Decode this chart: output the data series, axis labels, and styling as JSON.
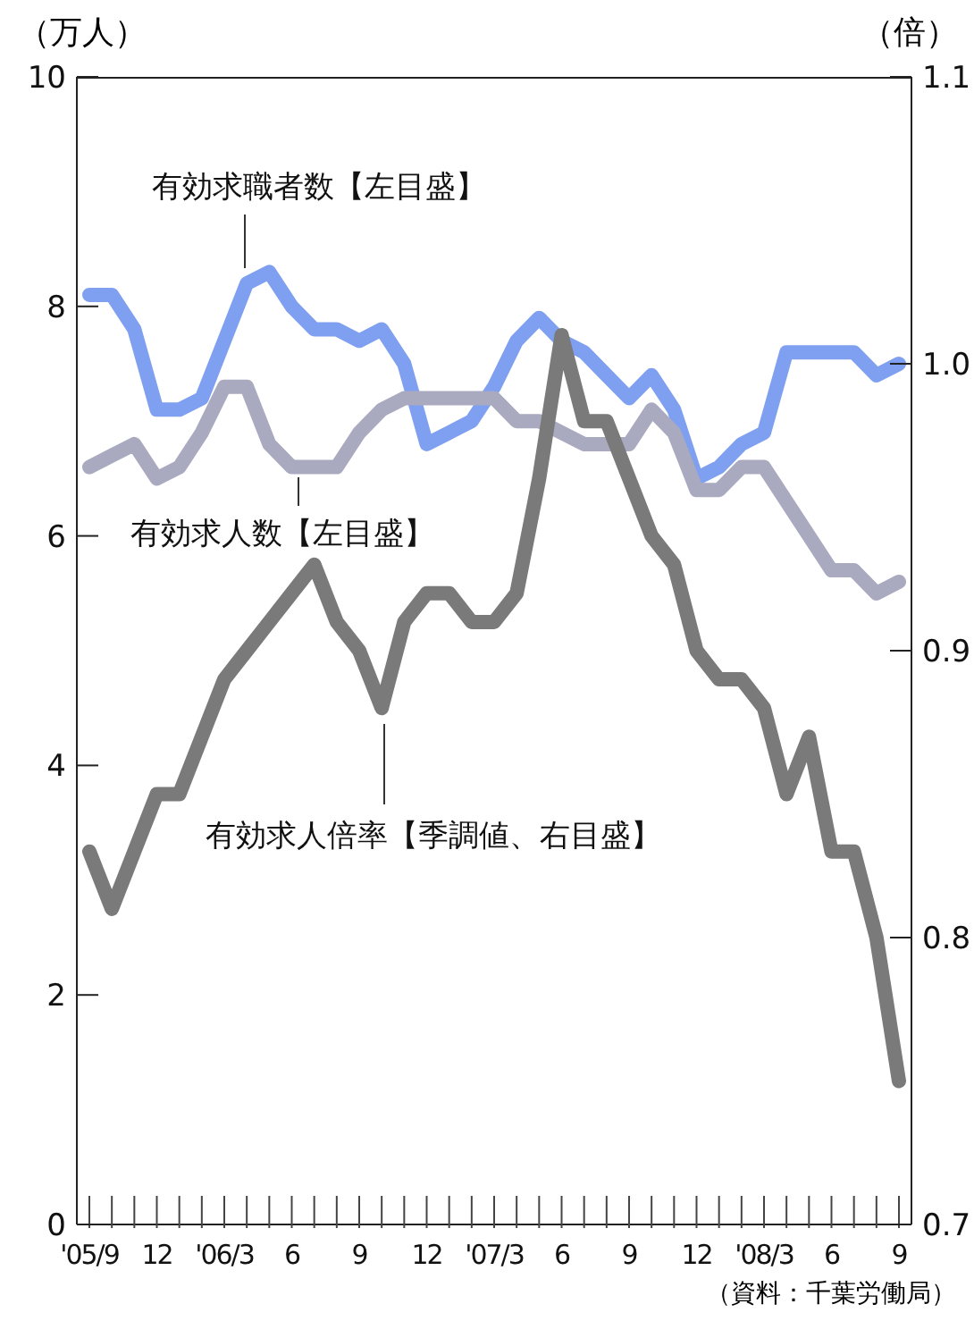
{
  "chart_data": {
    "type": "line",
    "ylabel": "（万人）",
    "y2label": "（倍）",
    "categories": [
      "'05/9",
      null,
      null,
      "12",
      null,
      null,
      "'06/3",
      null,
      null,
      "6",
      null,
      null,
      "9",
      null,
      null,
      "12",
      null,
      null,
      "'07/3",
      null,
      null,
      "6",
      null,
      null,
      "9",
      null,
      null,
      "12",
      null,
      null,
      "'08/3",
      null,
      null,
      "6",
      null,
      null,
      "9"
    ],
    "ylim": [
      0,
      10
    ],
    "yticks": [
      0,
      2,
      4,
      6,
      8,
      10
    ],
    "y2lim": [
      0.7,
      1.1
    ],
    "y2ticks": [
      0.7,
      0.8,
      0.9,
      {
        "value": 1,
        "label": "1.0"
      },
      1.1
    ],
    "series": [
      {
        "name": "有効求職者数【左目盛】",
        "color": "#7f9ff0",
        "values": [
          8.1,
          8.1,
          7.8,
          7.1,
          7.1,
          7.2,
          7.7,
          8.2,
          8.3,
          8.0,
          7.8,
          7.8,
          7.7,
          7.8,
          7.5,
          6.8,
          6.9,
          7.0,
          7.3,
          7.7,
          7.9,
          7.7,
          7.6,
          7.4,
          7.2,
          7.4,
          7.1,
          6.5,
          6.6,
          6.8,
          6.9,
          7.6,
          7.6,
          7.6,
          7.6,
          7.4,
          7.5
        ]
      },
      {
        "name": "有効求人数【左目盛】",
        "color": "#a9a9c0",
        "values": [
          6.6,
          6.7,
          6.8,
          6.5,
          6.6,
          6.9,
          7.3,
          7.3,
          6.8,
          6.6,
          6.6,
          6.6,
          6.9,
          7.1,
          7.2,
          7.2,
          7.2,
          7.2,
          7.2,
          7.0,
          7.0,
          6.9,
          6.8,
          6.8,
          6.8,
          7.1,
          6.9,
          6.4,
          6.4,
          6.6,
          6.6,
          6.3,
          6.0,
          5.7,
          5.7,
          5.5,
          5.6
        ]
      },
      {
        "name": "有効求人倍率【季調値、右目盛】",
        "color": "#7a7a7a",
        "axis": "y2",
        "values": [
          0.83,
          0.81,
          0.83,
          0.85,
          0.85,
          0.87,
          0.89,
          0.9,
          0.91,
          0.92,
          0.93,
          0.91,
          0.9,
          0.88,
          0.91,
          0.92,
          0.92,
          0.91,
          0.91,
          0.92,
          0.96,
          1.01,
          0.98,
          0.98,
          0.96,
          0.94,
          0.93,
          0.9,
          0.89,
          0.89,
          0.88,
          0.85,
          0.87,
          0.83,
          0.83,
          0.8,
          0.75
        ]
      }
    ],
    "line_style": "solid",
    "annotations": [
      "（資料：千葉労働局）"
    ]
  }
}
